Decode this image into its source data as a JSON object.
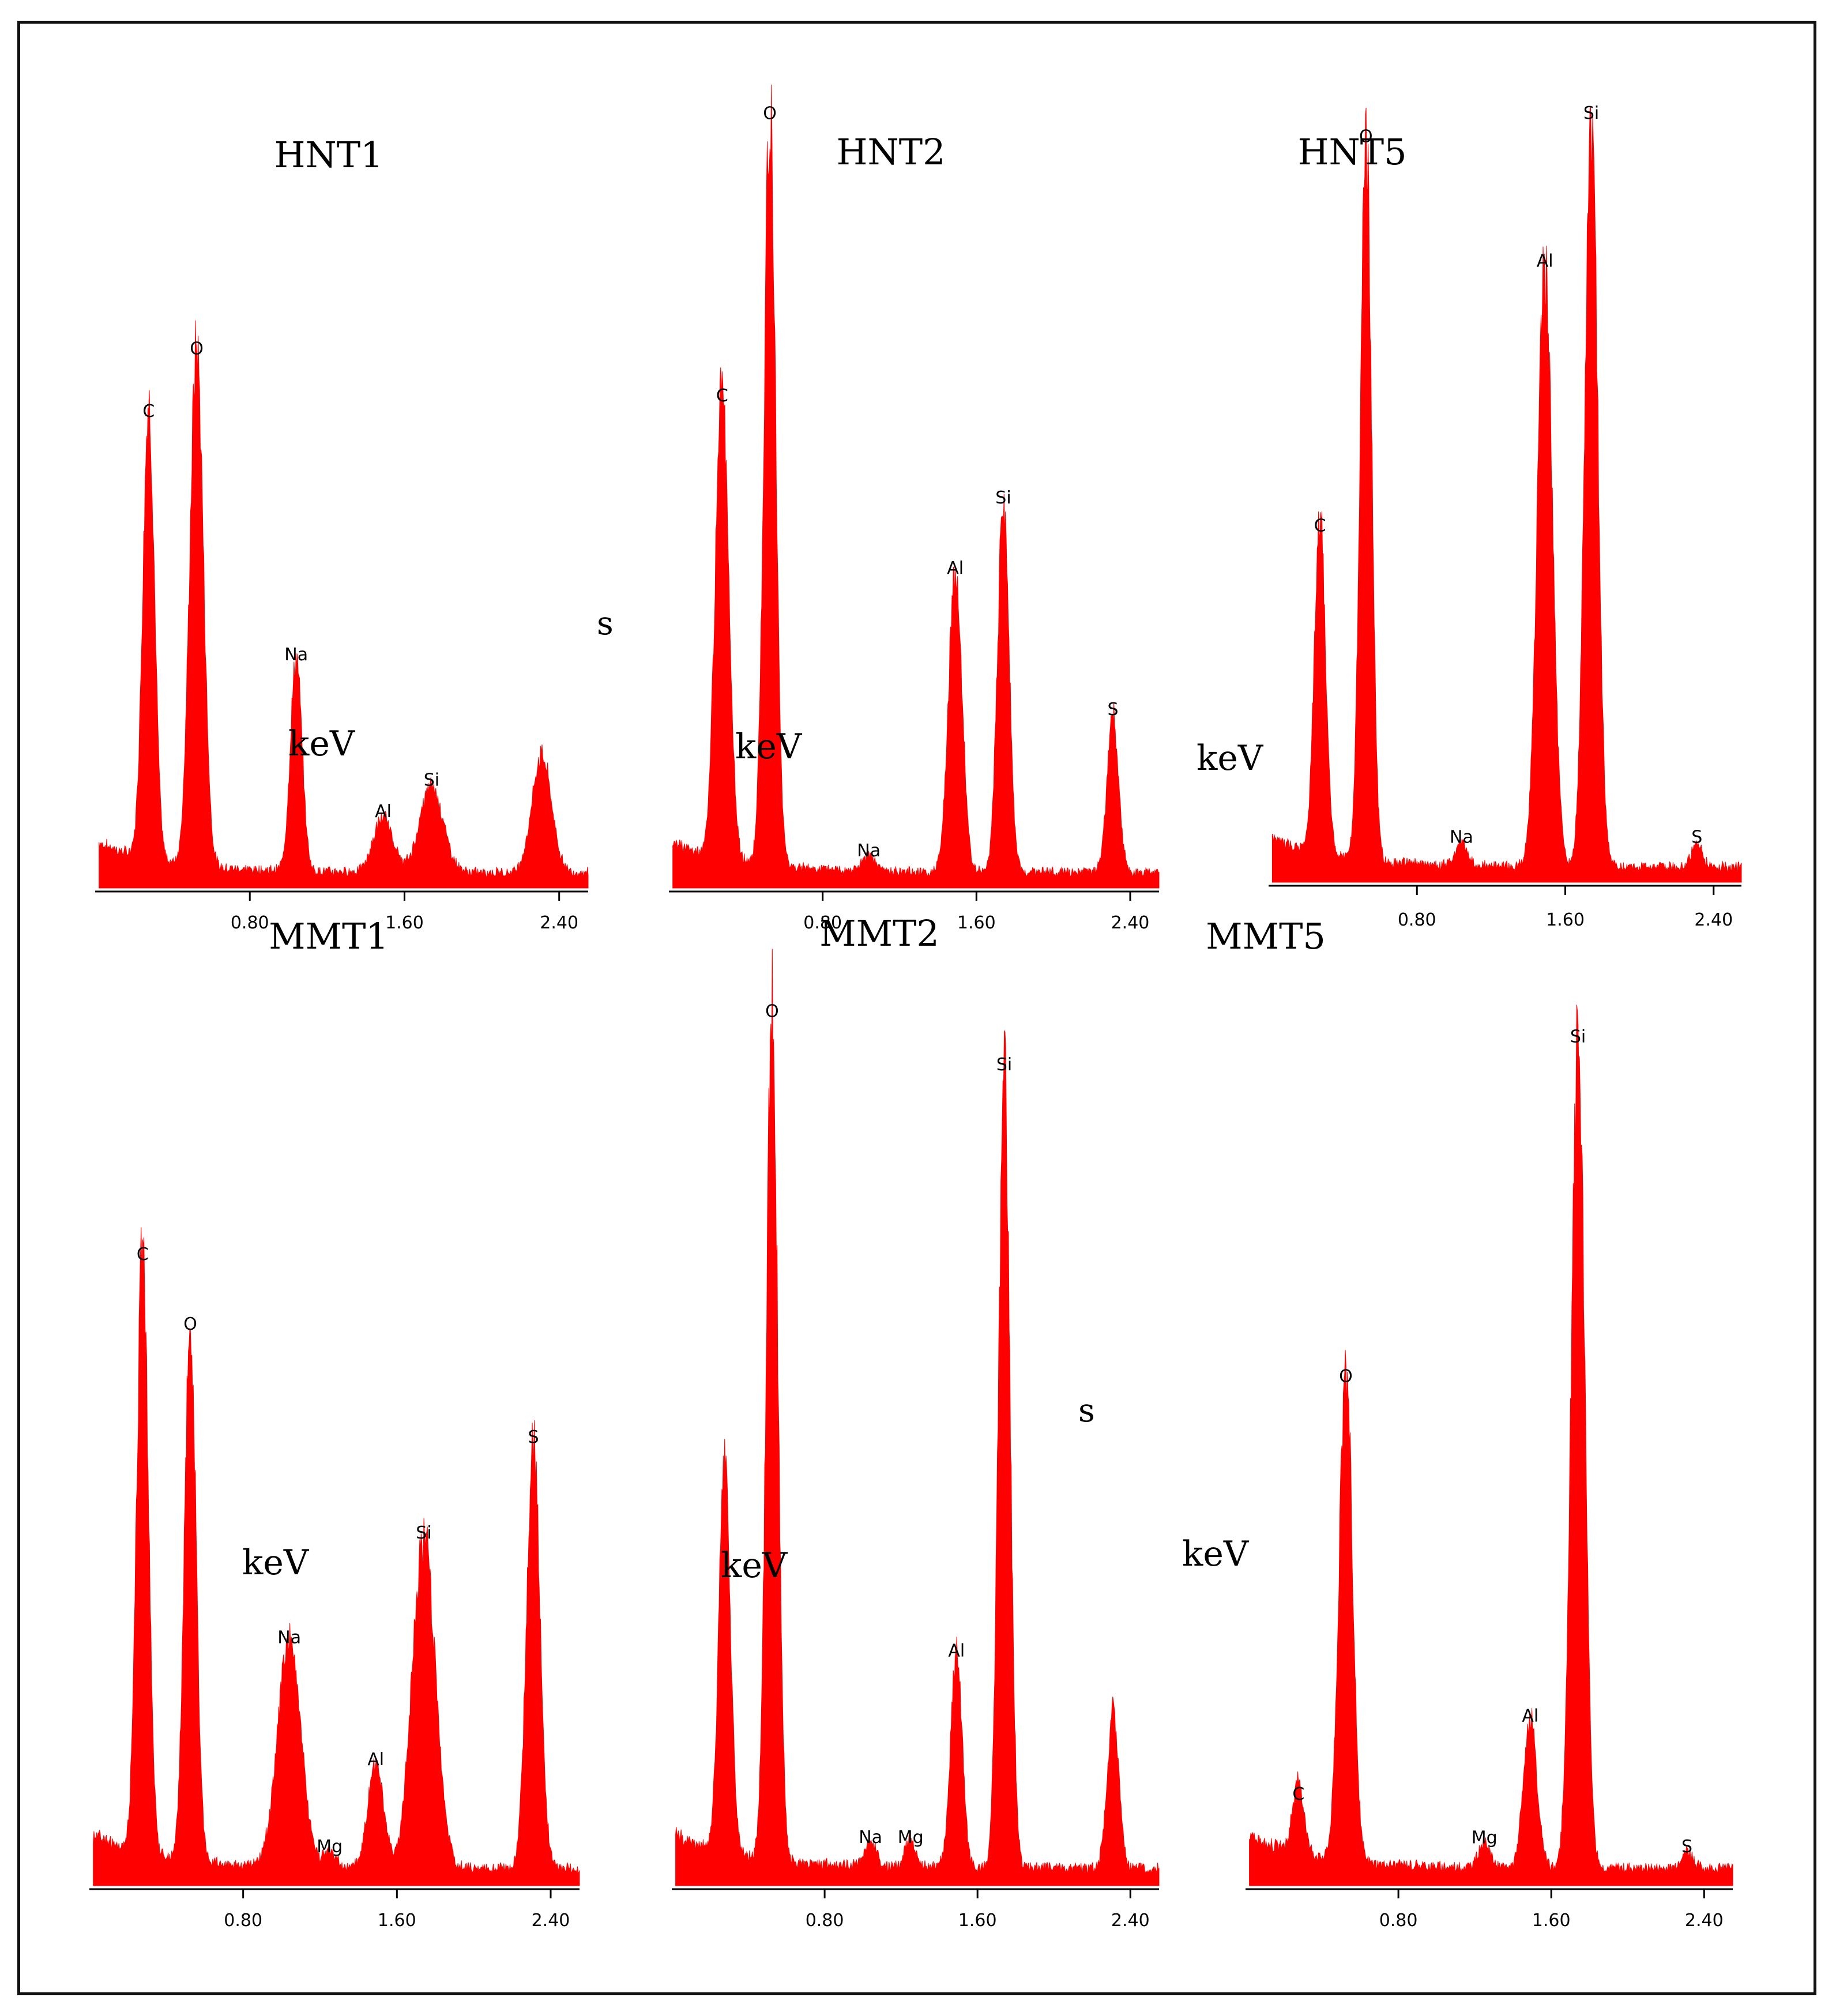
{
  "colors": {
    "spectrum": "#ff0000",
    "axis": "#000000",
    "frame": "#111111"
  },
  "chart_data": [
    {
      "type": "area",
      "title": "HNT1",
      "xlabel": "keV",
      "ylabel": "",
      "stray": "s",
      "xlim": [
        0.0,
        2.55
      ],
      "ylim": [
        0,
        100
      ],
      "baseline": 2,
      "start": 0.02,
      "end": 2.55,
      "xticks": [
        {
          "v": 0.8,
          "label": "0.80"
        },
        {
          "v": 1.6,
          "label": "1.60"
        },
        {
          "v": 2.4,
          "label": "2.40"
        }
      ],
      "peaks": [
        {
          "label": "C",
          "energy": 0.277,
          "height": 58,
          "width": 0.03
        },
        {
          "label": "O",
          "energy": 0.525,
          "height": 66,
          "width": 0.035
        },
        {
          "label": "Na",
          "energy": 1.04,
          "height": 27,
          "width": 0.03
        },
        {
          "label": "Al",
          "energy": 1.49,
          "height": 7,
          "width": 0.05
        },
        {
          "label": "Si",
          "energy": 1.74,
          "height": 11,
          "width": 0.06
        },
        {
          "label": "",
          "energy": 2.31,
          "height": 15,
          "width": 0.05
        }
      ]
    },
    {
      "type": "area",
      "title": "HNT2",
      "xlabel": "keV",
      "ylabel": "",
      "stray": "",
      "xlim": [
        0.0,
        2.55
      ],
      "ylim": [
        0,
        100
      ],
      "baseline": 2,
      "start": 0.02,
      "end": 2.55,
      "xticks": [
        {
          "v": 0.8,
          "label": "0.80"
        },
        {
          "v": 1.6,
          "label": "1.60"
        },
        {
          "v": 2.4,
          "label": "2.40"
        }
      ],
      "peaks": [
        {
          "label": "C",
          "energy": 0.277,
          "height": 60,
          "width": 0.035
        },
        {
          "label": "O",
          "energy": 0.525,
          "height": 96,
          "width": 0.03
        },
        {
          "label": "Na",
          "energy": 1.04,
          "height": 2,
          "width": 0.03
        },
        {
          "label": "Al",
          "energy": 1.49,
          "height": 38,
          "width": 0.035
        },
        {
          "label": "Si",
          "energy": 1.74,
          "height": 47,
          "width": 0.03
        },
        {
          "label": "S",
          "energy": 2.31,
          "height": 20,
          "width": 0.03
        }
      ]
    },
    {
      "type": "area",
      "title": "HNT5",
      "xlabel": "keV",
      "ylabel": "",
      "stray": "",
      "xlim": [
        0.0,
        2.55
      ],
      "ylim": [
        0,
        100
      ],
      "baseline": 2,
      "start": 0.02,
      "end": 2.55,
      "xticks": [
        {
          "v": 0.8,
          "label": "0.80"
        },
        {
          "v": 1.6,
          "label": "1.60"
        },
        {
          "v": 2.4,
          "label": "2.40"
        }
      ],
      "peaks": [
        {
          "label": "C",
          "energy": 0.277,
          "height": 43,
          "width": 0.03
        },
        {
          "label": "O",
          "energy": 0.525,
          "height": 93,
          "width": 0.03
        },
        {
          "label": "Na",
          "energy": 1.04,
          "height": 3,
          "width": 0.03
        },
        {
          "label": "Al",
          "energy": 1.49,
          "height": 77,
          "width": 0.04
        },
        {
          "label": "Si",
          "energy": 1.74,
          "height": 96,
          "width": 0.035
        },
        {
          "label": "S",
          "energy": 2.31,
          "height": 3,
          "width": 0.03
        }
      ]
    },
    {
      "type": "area",
      "title": "MMT1",
      "xlabel": "keV",
      "ylabel": "",
      "stray": "",
      "xlim": [
        0.0,
        2.55
      ],
      "ylim": [
        0,
        100
      ],
      "baseline": 2,
      "start": 0.02,
      "end": 2.55,
      "xticks": [
        {
          "v": 0.8,
          "label": "0.80"
        },
        {
          "v": 1.6,
          "label": "1.60"
        },
        {
          "v": 2.4,
          "label": "2.40"
        }
      ],
      "peaks": [
        {
          "label": "C",
          "energy": 0.277,
          "height": 70,
          "width": 0.03
        },
        {
          "label": "O",
          "energy": 0.525,
          "height": 62,
          "width": 0.03
        },
        {
          "label": "Na",
          "energy": 1.04,
          "height": 26,
          "width": 0.06
        },
        {
          "label": "Mg",
          "energy": 1.25,
          "height": 2,
          "width": 0.03
        },
        {
          "label": "Al",
          "energy": 1.49,
          "height": 12,
          "width": 0.04
        },
        {
          "label": "Si",
          "energy": 1.74,
          "height": 38,
          "width": 0.06
        },
        {
          "label": "S",
          "energy": 2.31,
          "height": 49,
          "width": 0.035
        }
      ]
    },
    {
      "type": "area",
      "title": "MMT2",
      "xlabel": "keV",
      "ylabel": "",
      "stray": "s",
      "xlim": [
        0.0,
        2.55
      ],
      "ylim": [
        0,
        100
      ],
      "baseline": 2,
      "start": 0.02,
      "end": 2.55,
      "xticks": [
        {
          "v": 0.8,
          "label": "0.80"
        },
        {
          "v": 1.6,
          "label": "1.60"
        },
        {
          "v": 2.4,
          "label": "2.40"
        }
      ],
      "peaks": [
        {
          "label": "",
          "energy": 0.277,
          "height": 44,
          "width": 0.03
        },
        {
          "label": "O",
          "energy": 0.525,
          "height": 96,
          "width": 0.03
        },
        {
          "label": "Na",
          "energy": 1.04,
          "height": 3,
          "width": 0.03
        },
        {
          "label": "Mg",
          "energy": 1.25,
          "height": 3,
          "width": 0.03
        },
        {
          "label": "Al",
          "energy": 1.49,
          "height": 24,
          "width": 0.03
        },
        {
          "label": "Si",
          "energy": 1.74,
          "height": 90,
          "width": 0.03
        },
        {
          "label": "",
          "energy": 2.31,
          "height": 18,
          "width": 0.03
        }
      ]
    },
    {
      "type": "area",
      "title": "MMT5",
      "xlabel": "keV",
      "ylabel": "",
      "stray": "",
      "xlim": [
        0.0,
        2.55
      ],
      "ylim": [
        0,
        100
      ],
      "baseline": 2,
      "start": 0.02,
      "end": 2.55,
      "xticks": [
        {
          "v": 0.8,
          "label": "0.80"
        },
        {
          "v": 1.6,
          "label": "1.60"
        },
        {
          "v": 2.4,
          "label": "2.40"
        }
      ],
      "peaks": [
        {
          "label": "C",
          "energy": 0.277,
          "height": 8,
          "width": 0.03
        },
        {
          "label": "O",
          "energy": 0.525,
          "height": 56,
          "width": 0.035
        },
        {
          "label": "Mg",
          "energy": 1.25,
          "height": 3,
          "width": 0.03
        },
        {
          "label": "Al",
          "energy": 1.49,
          "height": 17,
          "width": 0.035
        },
        {
          "label": "Si",
          "energy": 1.74,
          "height": 95,
          "width": 0.035
        },
        {
          "label": "S",
          "energy": 2.31,
          "height": 2,
          "width": 0.03
        }
      ]
    }
  ]
}
